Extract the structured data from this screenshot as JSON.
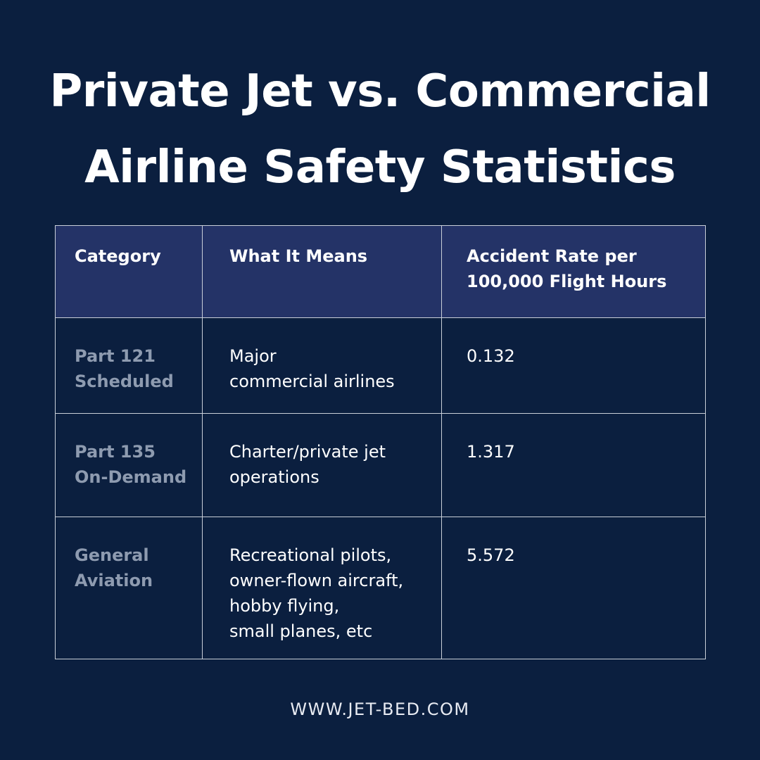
{
  "title": {
    "line1": "Private Jet vs. Commercial",
    "line2": "Airline Safety Statistics"
  },
  "table": {
    "headers": {
      "category": "Category",
      "meaning": "What It Means",
      "rate_line1": "Accident Rate per",
      "rate_line2": "100,000 Flight Hours"
    },
    "rows": [
      {
        "category": [
          "Part 121",
          "Scheduled"
        ],
        "meaning": [
          "Major",
          "commercial airlines"
        ],
        "rate": "0.132"
      },
      {
        "category": [
          "Part 135",
          "On-Demand"
        ],
        "meaning": [
          "Charter/private jet",
          "operations"
        ],
        "rate": "1.317"
      },
      {
        "category": [
          "General",
          "Aviation"
        ],
        "meaning": [
          "Recreational pilots,",
          "owner-flown aircraft,",
          "hobby flying,",
          "small planes, etc"
        ],
        "rate": "5.572"
      }
    ]
  },
  "footer": {
    "url": "WWW.JET-BED.COM"
  },
  "colors": {
    "background": "#0b1f3f",
    "header_row": "#243367",
    "category_text": "#8e9bb0",
    "border": "#c9cfd8"
  }
}
